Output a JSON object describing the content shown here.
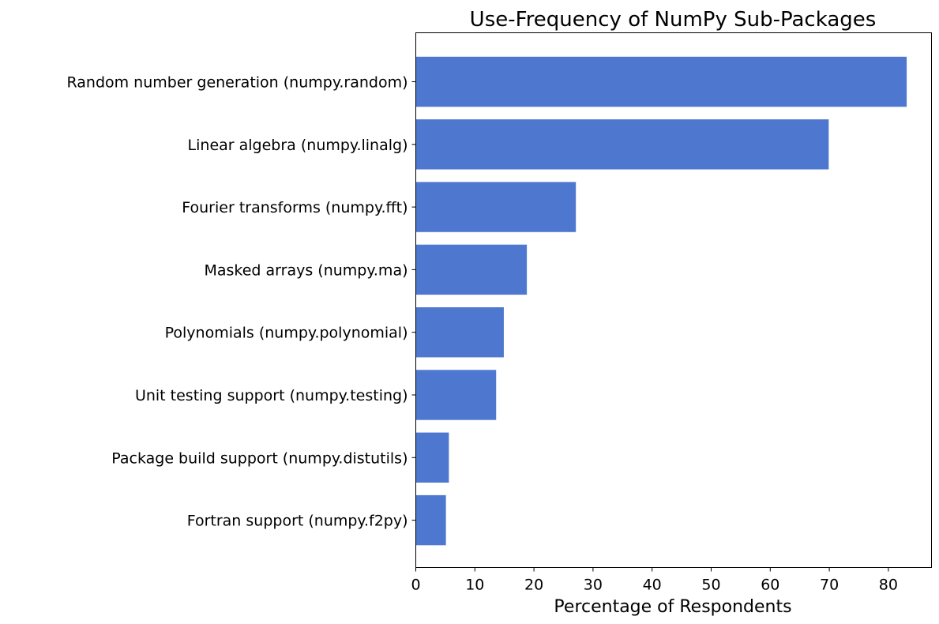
{
  "chart_data": {
    "type": "bar",
    "orientation": "horizontal",
    "title": "Use-Frequency of NumPy Sub-Packages",
    "xlabel": "Percentage of Respondents",
    "ylabel": "",
    "categories": [
      "Random number generation (numpy.random)",
      "Linear algebra (numpy.linalg)",
      "Fourier transforms (numpy.fft)",
      "Masked arrays (numpy.ma)",
      "Polynomials (numpy.polynomial)",
      "Unit testing support (numpy.testing)",
      "Package build support (numpy.distutils)",
      "Fortran support (numpy.f2py)"
    ],
    "values": [
      83.1,
      69.9,
      27.1,
      18.8,
      14.9,
      13.6,
      5.6,
      5.1
    ],
    "xlim": [
      0,
      87.3
    ],
    "xticks": [
      0,
      10,
      20,
      30,
      40,
      50,
      60,
      70,
      80
    ],
    "grid": false,
    "bar_color": "#4e78cf"
  }
}
